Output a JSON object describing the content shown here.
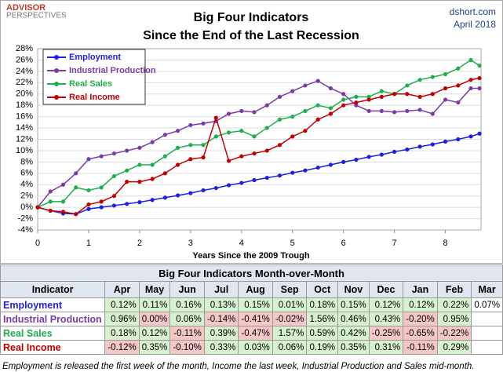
{
  "header": {
    "logo": [
      "ADVISOR",
      "PERSPECTIVES"
    ],
    "source": "dshort.com",
    "date": "April 2018"
  },
  "chart_data": {
    "type": "line",
    "title": "Big Four Indicators",
    "subtitle": "Since the End of the Last Recession",
    "x_label": "Years Since the 2009 Trough",
    "x": [
      0,
      0.25,
      0.5,
      0.75,
      1,
      1.25,
      1.5,
      1.75,
      2,
      2.25,
      2.5,
      2.75,
      3,
      3.25,
      3.5,
      3.75,
      4,
      4.25,
      4.5,
      4.75,
      5,
      5.25,
      5.5,
      5.75,
      6,
      6.25,
      6.5,
      6.75,
      7,
      7.25,
      7.5,
      7.75,
      8,
      8.25,
      8.5,
      8.67
    ],
    "series": [
      {
        "name": "Employment",
        "color": "#1f1fe0",
        "values": [
          0,
          -0.6,
          -1.1,
          -1.2,
          -0.3,
          0,
          0.3,
          0.6,
          0.9,
          1.3,
          1.7,
          2.1,
          2.5,
          3.0,
          3.4,
          3.9,
          4.3,
          4.8,
          5.2,
          5.6,
          6.1,
          6.5,
          7.0,
          7.5,
          8.0,
          8.4,
          8.9,
          9.3,
          9.8,
          10.2,
          10.7,
          11.1,
          11.6,
          12.0,
          12.5,
          13.0
        ]
      },
      {
        "name": "Industrial Production",
        "color": "#7a3aa8",
        "values": [
          0,
          2.8,
          4,
          6,
          8.5,
          9,
          9.5,
          10,
          10.5,
          11.5,
          12.8,
          13.5,
          14.5,
          14.8,
          15.2,
          16.5,
          17,
          16.8,
          18,
          19.5,
          20.5,
          21.5,
          22.3,
          21,
          20,
          18,
          17,
          17,
          16.8,
          17,
          17.2,
          16.5,
          19,
          18.5,
          21,
          21
        ]
      },
      {
        "name": "Real Sales",
        "color": "#1fae4c",
        "values": [
          0,
          1,
          1,
          3.5,
          3,
          3.5,
          5.5,
          6.5,
          7.5,
          7.5,
          9,
          10.5,
          11,
          11,
          12.5,
          13.2,
          13.5,
          12.5,
          14,
          15.5,
          16,
          17,
          18,
          17.5,
          19,
          19.5,
          19.5,
          20.5,
          20,
          21.5,
          22.5,
          23,
          23.5,
          24.5,
          26,
          25
        ]
      },
      {
        "name": "Real Income",
        "color": "#c00000",
        "values": [
          0,
          -0.6,
          -0.8,
          -1.2,
          0.5,
          1,
          2,
          4.5,
          4.5,
          5,
          6,
          7.5,
          8.5,
          8.8,
          15.8,
          8.2,
          9,
          9.5,
          10,
          11,
          12.5,
          13.5,
          15.5,
          16.5,
          18,
          18.5,
          19,
          19.5,
          20,
          20,
          19.5,
          20,
          21,
          21.5,
          22.5,
          22.8
        ]
      }
    ],
    "xlim": [
      0,
      8.7
    ],
    "xticks": [
      0,
      1,
      2,
      3,
      4,
      5,
      6,
      7,
      8
    ],
    "ylim": [
      -4,
      28
    ],
    "yticks": [
      {
        "value": -4,
        "label": "-4%"
      },
      {
        "value": -2,
        "label": "-2%"
      },
      {
        "value": 0,
        "label": "0%"
      },
      {
        "value": 2,
        "label": "2%"
      },
      {
        "value": 4,
        "label": "4%"
      },
      {
        "value": 6,
        "label": "6%"
      },
      {
        "value": 8,
        "label": "8%"
      },
      {
        "value": 10,
        "label": "10%"
      },
      {
        "value": 12,
        "label": "12%"
      },
      {
        "value": 14,
        "label": "14%"
      },
      {
        "value": 16,
        "label": "16%"
      },
      {
        "value": 18,
        "label": "18%"
      },
      {
        "value": 20,
        "label": "20%"
      },
      {
        "value": 22,
        "label": "22%"
      },
      {
        "value": 24,
        "label": "24%"
      },
      {
        "value": 26,
        "label": "26%"
      },
      {
        "value": 28,
        "label": "28%"
      }
    ],
    "grid": true,
    "legend": "upper left"
  },
  "table": {
    "title": "Big Four Indicators Month-over-Month",
    "columns": [
      "Indicator",
      "Apr",
      "May",
      "Jun",
      "Jul",
      "Aug",
      "Sep",
      "Oct",
      "Nov",
      "Dec",
      "Jan",
      "Feb",
      "Mar"
    ],
    "rows": [
      {
        "label": "Employment",
        "values": [
          "0.12%",
          "0.11%",
          "0.16%",
          "0.13%",
          "0.15%",
          "0.01%",
          "0.18%",
          "0.15%",
          "0.12%",
          "0.12%",
          "0.22%",
          "0.07%"
        ]
      },
      {
        "label": "Industrial Production",
        "values": [
          "0.96%",
          "0.00%",
          "0.06%",
          "-0.14%",
          "-0.41%",
          "-0.02%",
          "1.56%",
          "0.46%",
          "0.43%",
          "-0.20%",
          "0.95%"
        ]
      },
      {
        "label": "Real Sales",
        "values": [
          "0.18%",
          "0.12%",
          "-0.11%",
          "0.39%",
          "-0.47%",
          "1.57%",
          "0.59%",
          "0.42%",
          "-0.25%",
          "-0.65%",
          "-0.22%"
        ]
      },
      {
        "label": "Real Income",
        "values": [
          "-0.12%",
          "0.35%",
          "-0.10%",
          "0.33%",
          "0.03%",
          "0.06%",
          "0.19%",
          "0.35%",
          "0.31%",
          "-0.11%",
          "0.29%"
        ]
      }
    ]
  },
  "footnote": "Employment is released the first week of the month, Income the last week, Industrial Production and Sales mid-month."
}
